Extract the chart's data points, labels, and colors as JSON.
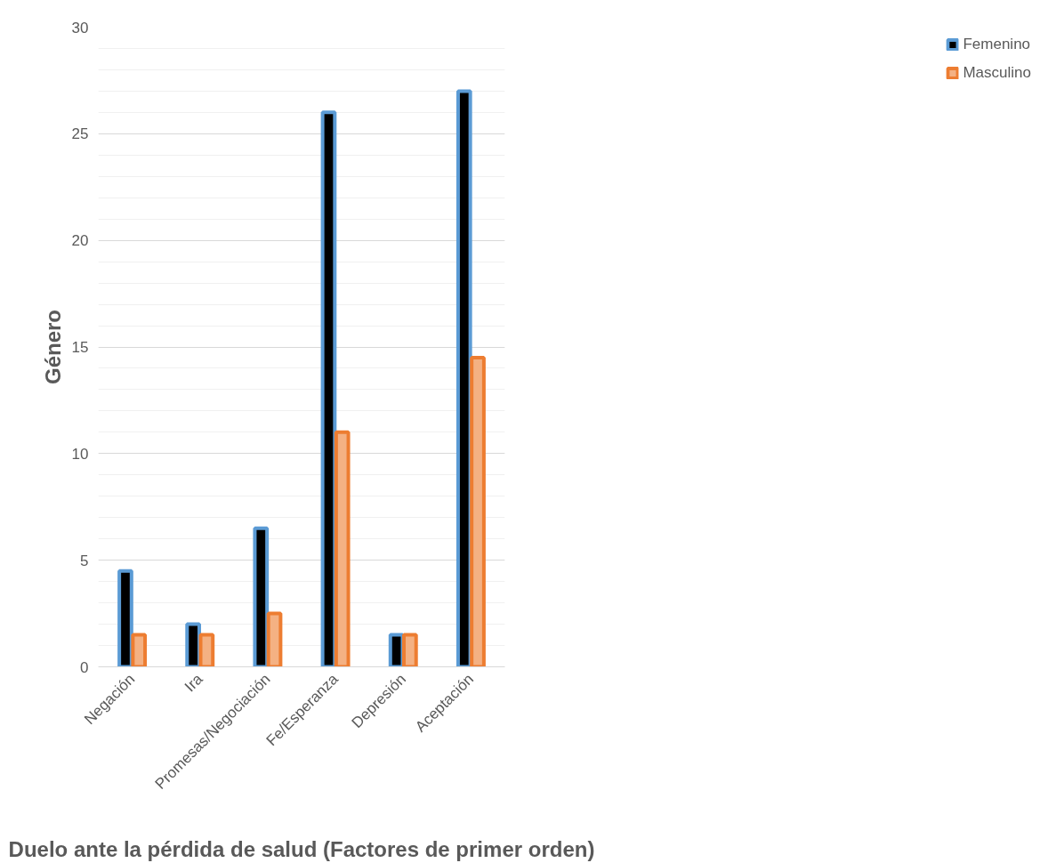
{
  "chart_data": {
    "type": "bar",
    "xlabel": "Duelo ante la pérdida de salud (Factores de primer orden)",
    "ylabel": "Género",
    "categories": [
      "Negación",
      "Ira",
      "Promesas/Negociación",
      "Fe/Esperanza",
      "Depresión",
      "Aceptación"
    ],
    "series": [
      {
        "name": "Femenino",
        "color": "#000000",
        "values": [
          4.5,
          2,
          6.5,
          26,
          1.5,
          27
        ]
      },
      {
        "name": "Masculino",
        "color": "#f4b183",
        "values": [
          1.5,
          1.5,
          2.5,
          11,
          1.5,
          14.5
        ]
      }
    ],
    "ylim": [
      0,
      30
    ],
    "yticks": [
      0,
      5,
      10,
      15,
      20,
      25,
      30
    ],
    "grid": "y",
    "legend": "right"
  }
}
